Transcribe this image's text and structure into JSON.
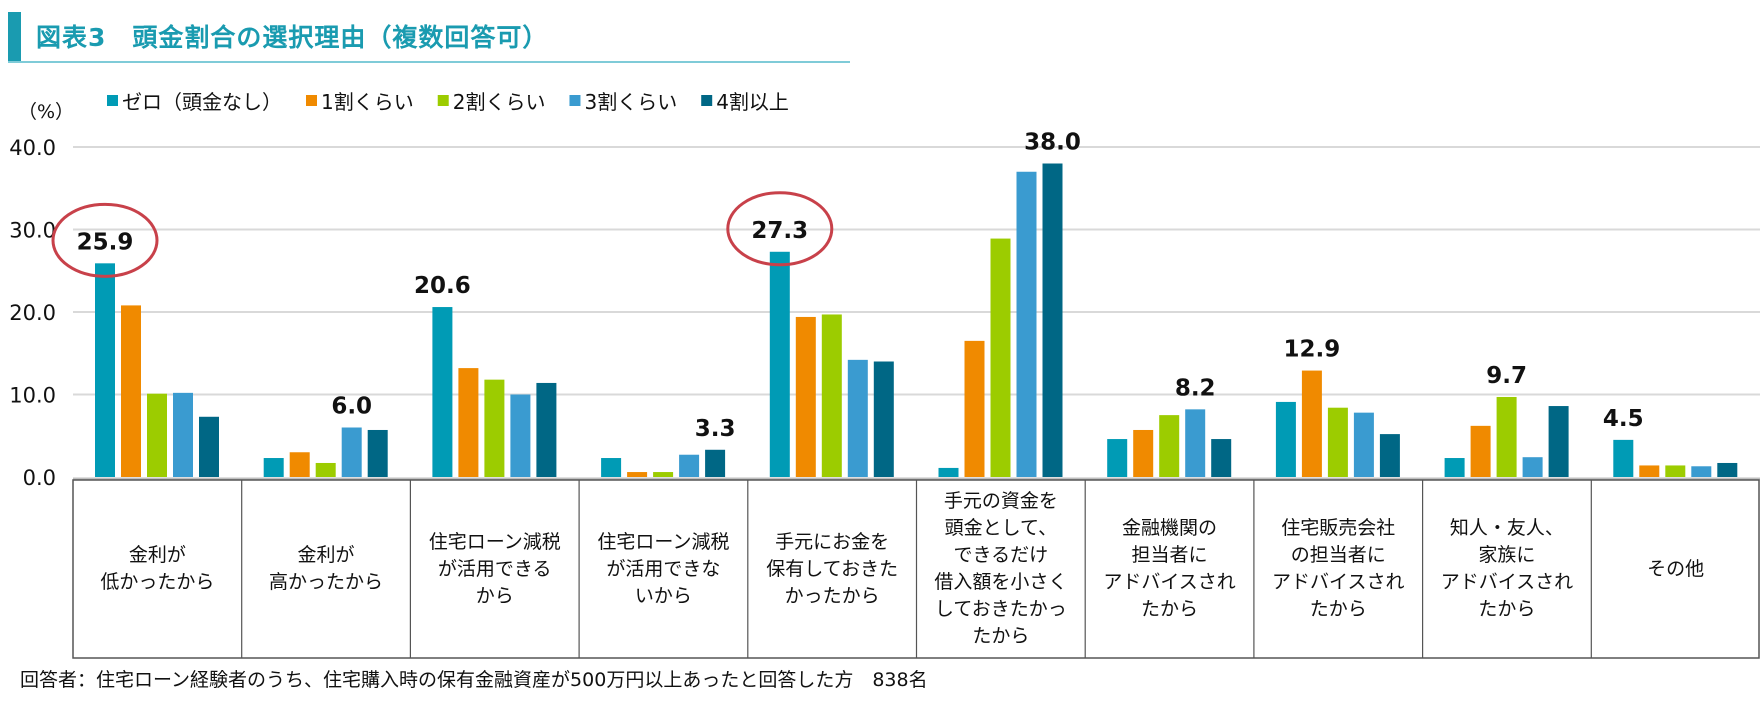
{
  "title": "図表3　頭金割合の選択理由（複数回答可）",
  "footer": "回答者：住宅ローン経験者のうち、住宅購入時の保有金融資産が500万円以上あったと回答した方　838名",
  "chart_data": {
    "type": "bar",
    "ylabel": "（%）",
    "ylim": [
      0,
      40
    ],
    "yticks": [
      "0.0",
      "10.0",
      "20.0",
      "30.0",
      "40.0"
    ],
    "grid": true,
    "legend_position": "top-left",
    "categories": [
      [
        "金利が",
        "低かったから"
      ],
      [
        "金利が",
        "高かったから"
      ],
      [
        "住宅ローン減税",
        "が活用できる",
        "から"
      ],
      [
        "住宅ローン減税",
        "が活用できな",
        "いから"
      ],
      [
        "手元にお金を",
        "保有しておきた",
        "かったから"
      ],
      [
        "手元の資金を",
        "頭金として、",
        "できるだけ",
        "借入額を小さく",
        "しておきたかっ",
        "たから"
      ],
      [
        "金融機関の",
        "担当者に",
        "アドバイスされ",
        "たから"
      ],
      [
        "住宅販売会社",
        "の担当者に",
        "アドバイスされ",
        "たから"
      ],
      [
        "知人・友人、",
        "家族に",
        "アドバイスされ",
        "たから"
      ],
      [
        "その他"
      ]
    ],
    "series": [
      {
        "name": "ゼロ（頭金なし）",
        "color": "#009bb5",
        "values": [
          25.9,
          2.3,
          20.6,
          2.3,
          27.3,
          1.1,
          4.6,
          9.1,
          2.3,
          4.5
        ]
      },
      {
        "name": "1割くらい",
        "color": "#f08a00",
        "values": [
          20.8,
          3.0,
          13.2,
          0.6,
          19.4,
          16.5,
          5.7,
          12.9,
          6.2,
          1.4
        ]
      },
      {
        "name": "2割くらい",
        "color": "#9ccc00",
        "values": [
          10.1,
          1.7,
          11.8,
          0.6,
          19.7,
          28.9,
          7.5,
          8.4,
          9.7,
          1.4
        ]
      },
      {
        "name": "3割くらい",
        "color": "#3a9bd0",
        "values": [
          10.2,
          6.0,
          10.0,
          2.7,
          14.2,
          37.0,
          8.2,
          7.8,
          2.4,
          1.3
        ]
      },
      {
        "name": "4割以上",
        "color": "#006785",
        "values": [
          7.3,
          5.7,
          11.4,
          3.3,
          14.0,
          38.0,
          4.6,
          5.2,
          8.6,
          1.7
        ]
      }
    ],
    "data_labels": [
      {
        "category": 0,
        "series": 0,
        "text": "25.9",
        "circled": true
      },
      {
        "category": 1,
        "series": 3,
        "text": "6.0"
      },
      {
        "category": 2,
        "series": 0,
        "text": "20.6"
      },
      {
        "category": 3,
        "series": 4,
        "text": "3.3"
      },
      {
        "category": 4,
        "series": 0,
        "text": "27.3",
        "circled": true
      },
      {
        "category": 5,
        "series": 4,
        "text": "38.0"
      },
      {
        "category": 6,
        "series": 3,
        "text": "8.2"
      },
      {
        "category": 7,
        "series": 1,
        "text": "12.9"
      },
      {
        "category": 8,
        "series": 2,
        "text": "9.7"
      },
      {
        "category": 9,
        "series": 0,
        "text": "4.5"
      }
    ],
    "highlight_color": "#c8414a"
  }
}
